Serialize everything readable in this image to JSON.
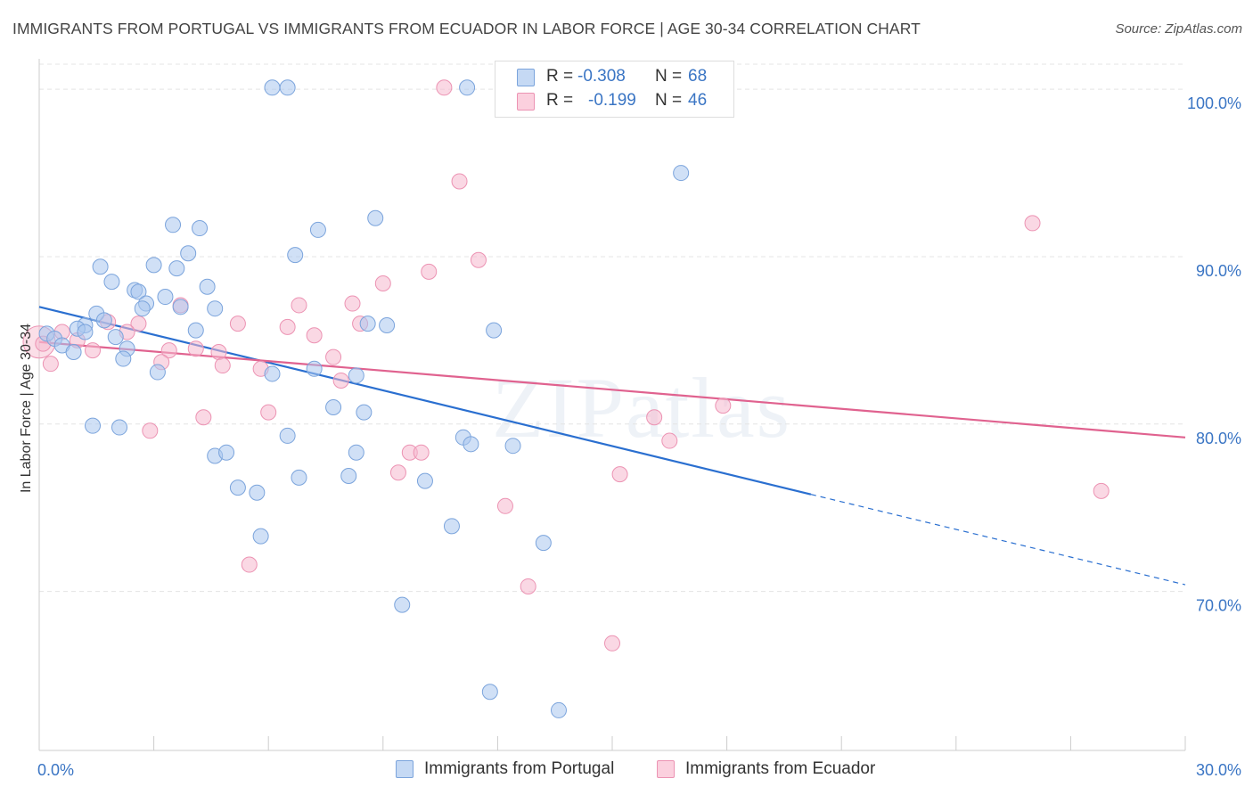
{
  "title": "IMMIGRANTS FROM PORTUGAL VS IMMIGRANTS FROM ECUADOR IN LABOR FORCE | AGE 30-34 CORRELATION CHART",
  "source": "Source: ZipAtlas.com",
  "watermark": "ZIPatlas",
  "legend": {
    "r_label": "R =",
    "n_label": "N =",
    "portugal": {
      "r": "-0.308",
      "n": "68"
    },
    "ecuador": {
      "r": "-0.199",
      "n": "46"
    }
  },
  "bottom_legend": {
    "portugal": "Immigrants from Portugal",
    "ecuador": "Immigrants from Ecuador"
  },
  "colors": {
    "portugal_fill": "#a9c6ee",
    "portugal_stroke": "#7ba4dc",
    "portugal_line": "#2a6fd0",
    "ecuador_fill": "#f6b8cd",
    "ecuador_stroke": "#ec93b3",
    "ecuador_line": "#e0628f",
    "tick_label": "#3a75c4",
    "grid": "#e4e4e4"
  },
  "chart_data": {
    "type": "scatter",
    "xlabel": "",
    "ylabel": "In Labor Force | Age 30-34",
    "xlim": [
      0,
      30
    ],
    "ylim": [
      60.5,
      101.5
    ],
    "x_tick_labels": [
      {
        "value": 0,
        "label": "0.0%"
      },
      {
        "value": 30,
        "label": "30.0%"
      }
    ],
    "x_minor_ticks": [
      0,
      3,
      6,
      9,
      12,
      15,
      18,
      21,
      24,
      27,
      30
    ],
    "y_ticks": [
      {
        "value": 70,
        "label": "70.0%"
      },
      {
        "value": 80,
        "label": "80.0%"
      },
      {
        "value": 90,
        "label": "90.0%"
      },
      {
        "value": 100,
        "label": "100.0%"
      }
    ],
    "grid": true,
    "legend_position": "top-center",
    "series": [
      {
        "name": "Immigrants from Portugal",
        "points": [
          [
            6.1,
            100.1
          ],
          [
            6.5,
            100.1
          ],
          [
            11.2,
            100.1
          ],
          [
            16.8,
            95.0
          ],
          [
            3.5,
            91.9
          ],
          [
            4.2,
            91.7
          ],
          [
            7.3,
            91.6
          ],
          [
            8.8,
            92.3
          ],
          [
            1.6,
            89.4
          ],
          [
            3.0,
            89.5
          ],
          [
            3.6,
            89.3
          ],
          [
            3.9,
            90.2
          ],
          [
            6.7,
            90.1
          ],
          [
            1.9,
            88.5
          ],
          [
            2.5,
            88.0
          ],
          [
            2.6,
            87.9
          ],
          [
            3.3,
            87.6
          ],
          [
            4.4,
            88.2
          ],
          [
            2.8,
            87.2
          ],
          [
            2.7,
            86.9
          ],
          [
            3.7,
            87.0
          ],
          [
            4.6,
            86.9
          ],
          [
            1.5,
            86.6
          ],
          [
            1.7,
            86.2
          ],
          [
            1.2,
            85.9
          ],
          [
            1.0,
            85.7
          ],
          [
            1.2,
            85.5
          ],
          [
            2.0,
            85.2
          ],
          [
            4.1,
            85.6
          ],
          [
            0.2,
            85.4
          ],
          [
            0.4,
            85.1
          ],
          [
            0.6,
            84.7
          ],
          [
            2.3,
            84.5
          ],
          [
            8.6,
            86.0
          ],
          [
            9.1,
            85.9
          ],
          [
            11.9,
            85.6
          ],
          [
            0.9,
            84.3
          ],
          [
            2.2,
            83.9
          ],
          [
            3.1,
            83.1
          ],
          [
            6.1,
            83.0
          ],
          [
            7.2,
            83.3
          ],
          [
            8.3,
            82.9
          ],
          [
            7.7,
            81.0
          ],
          [
            8.5,
            80.7
          ],
          [
            1.4,
            79.9
          ],
          [
            2.1,
            79.8
          ],
          [
            6.5,
            79.3
          ],
          [
            11.1,
            79.2
          ],
          [
            11.3,
            78.8
          ],
          [
            12.4,
            78.7
          ],
          [
            4.6,
            78.1
          ],
          [
            4.9,
            78.3
          ],
          [
            8.3,
            78.3
          ],
          [
            6.8,
            76.8
          ],
          [
            8.1,
            76.9
          ],
          [
            10.1,
            76.6
          ],
          [
            5.2,
            76.2
          ],
          [
            5.7,
            75.9
          ],
          [
            10.8,
            73.9
          ],
          [
            5.8,
            73.3
          ],
          [
            13.2,
            72.9
          ],
          [
            9.5,
            69.2
          ],
          [
            11.8,
            64.0
          ],
          [
            13.6,
            62.9
          ]
        ],
        "trend": {
          "x": [
            0,
            20.2
          ],
          "y": [
            87.0,
            75.8
          ],
          "dashed_to": [
            30,
            70.4
          ]
        }
      },
      {
        "name": "Immigrants from Ecuador",
        "points": [
          [
            10.6,
            100.1
          ],
          [
            11.0,
            94.5
          ],
          [
            26.0,
            92.0
          ],
          [
            11.5,
            89.8
          ],
          [
            10.2,
            89.1
          ],
          [
            9.0,
            88.4
          ],
          [
            3.7,
            87.1
          ],
          [
            6.8,
            87.1
          ],
          [
            8.2,
            87.2
          ],
          [
            2.6,
            86.0
          ],
          [
            5.2,
            86.0
          ],
          [
            6.5,
            85.8
          ],
          [
            8.4,
            86.0
          ],
          [
            1.8,
            86.1
          ],
          [
            2.3,
            85.5
          ],
          [
            7.2,
            85.3
          ],
          [
            0.6,
            85.5
          ],
          [
            1.0,
            85.0
          ],
          [
            1.4,
            84.4
          ],
          [
            3.4,
            84.4
          ],
          [
            4.1,
            84.5
          ],
          [
            4.7,
            84.3
          ],
          [
            0.1,
            84.8
          ],
          [
            3.2,
            83.7
          ],
          [
            4.8,
            83.5
          ],
          [
            5.8,
            83.3
          ],
          [
            7.7,
            84.0
          ],
          [
            7.9,
            82.6
          ],
          [
            0.3,
            83.6
          ],
          [
            6.0,
            80.7
          ],
          [
            4.3,
            80.4
          ],
          [
            2.9,
            79.6
          ],
          [
            16.1,
            80.4
          ],
          [
            17.9,
            81.1
          ],
          [
            16.5,
            79.0
          ],
          [
            9.7,
            78.3
          ],
          [
            10.0,
            78.3
          ],
          [
            9.4,
            77.1
          ],
          [
            15.2,
            77.0
          ],
          [
            12.2,
            75.1
          ],
          [
            27.8,
            76.0
          ],
          [
            5.5,
            71.6
          ],
          [
            12.8,
            70.3
          ],
          [
            15.0,
            66.9
          ]
        ],
        "trend": {
          "x": [
            0,
            30
          ],
          "y": [
            84.9,
            79.2
          ]
        }
      }
    ]
  }
}
